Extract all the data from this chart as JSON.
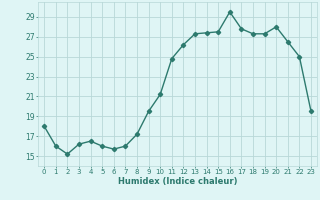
{
  "x": [
    0,
    1,
    2,
    3,
    4,
    5,
    6,
    7,
    8,
    9,
    10,
    11,
    12,
    13,
    14,
    15,
    16,
    17,
    18,
    19,
    20,
    21,
    22,
    23
  ],
  "y": [
    18.0,
    16.0,
    15.2,
    16.2,
    16.5,
    16.0,
    15.7,
    16.0,
    17.2,
    19.5,
    21.2,
    24.8,
    26.2,
    27.3,
    27.4,
    27.5,
    29.5,
    27.8,
    27.3,
    27.3,
    28.0,
    26.5,
    25.0,
    19.5
  ],
  "line_color": "#2d7a6e",
  "bg_color": "#dff5f5",
  "grid_color": "#b8d8d8",
  "xlabel": "Humidex (Indice chaleur)",
  "ylim": [
    14.0,
    30.5
  ],
  "yticks": [
    15,
    17,
    19,
    21,
    23,
    25,
    27,
    29
  ],
  "xlim": [
    -0.5,
    23.5
  ],
  "xticks": [
    0,
    1,
    2,
    3,
    4,
    5,
    6,
    7,
    8,
    9,
    10,
    11,
    12,
    13,
    14,
    15,
    16,
    17,
    18,
    19,
    20,
    21,
    22,
    23
  ],
  "xtick_labels": [
    "0",
    "1",
    "2",
    "3",
    "4",
    "5",
    "6",
    "7",
    "8",
    "9",
    "10",
    "11",
    "12",
    "13",
    "14",
    "15",
    "16",
    "17",
    "18",
    "19",
    "20",
    "21",
    "22",
    "23"
  ],
  "marker": "D",
  "marker_size": 2.2,
  "line_width": 1.0
}
